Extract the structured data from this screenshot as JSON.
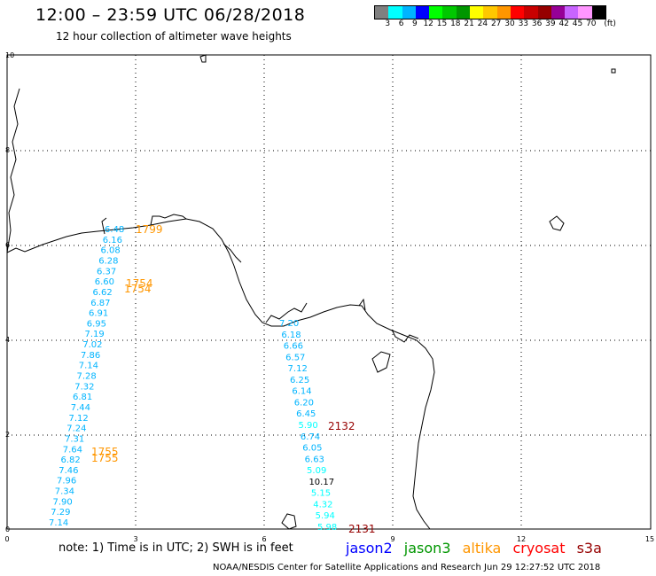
{
  "title": "12:00 – 23:59 UTC 06/28/2018",
  "subtitle": "12 hour collection of altimeter wave heights",
  "colorbar": {
    "colors": [
      "#808080",
      "#00ffff",
      "#00b4ff",
      "#0000ff",
      "#00ff00",
      "#00c800",
      "#009600",
      "#ffff00",
      "#ffc800",
      "#ff9600",
      "#ff0000",
      "#c80000",
      "#960000",
      "#960096",
      "#c864ff",
      "#ff96ff",
      "#000000"
    ],
    "labels": [
      "3",
      "6",
      "9",
      "12",
      "15",
      "18",
      "21",
      "24",
      "27",
      "30",
      "33",
      "36",
      "39",
      "42",
      "45",
      "70"
    ],
    "unit": "(ft)"
  },
  "axes": {
    "x_ticks": [
      "0",
      "3",
      "6",
      "9",
      "12",
      "15"
    ],
    "y_ticks": [
      "0",
      "2",
      "4",
      "6",
      "8",
      "10"
    ]
  },
  "tracks": {
    "jason2_left": {
      "color": "#00b4ff",
      "values": [
        "6.48",
        "6.16",
        "6.08",
        "6.28",
        "6.37",
        "6.60",
        "6.62",
        "6.87",
        "6.91",
        "6.95",
        "7.19",
        "7.02",
        "7.86",
        "7.14",
        "7.28",
        "7.32",
        "6.81",
        "7.44",
        "7.12",
        "7.24",
        "7.31",
        "7.64",
        "6.82",
        "7.46",
        "7.96",
        "7.34",
        "7.90",
        "7.29",
        "7.14"
      ]
    },
    "jason2_right": {
      "color": "#00b4ff",
      "values": [
        "7.20",
        "6.18",
        "6.66",
        "6.57",
        "7.12",
        "6.25",
        "6.14",
        "6.20",
        "6.45",
        "5.90",
        "6.74",
        "6.05",
        "6.63",
        "5.09",
        "10.17",
        "5.15",
        "4.32",
        "5.94",
        "5.98"
      ]
    }
  },
  "pass_labels": [
    {
      "text": "1799",
      "color": "#ff9600"
    },
    {
      "text": "1754",
      "color": "#ff9600"
    },
    {
      "text": "1755",
      "color": "#ff9600"
    },
    {
      "text": "2132",
      "color": "#960000"
    },
    {
      "text": "2131",
      "color": "#960000"
    }
  ],
  "footer": {
    "note": "note: 1) Time is in UTC; 2) SWH is in feet",
    "legend": [
      {
        "name": "jason2",
        "color": "#0000ff"
      },
      {
        "name": "jason3",
        "color": "#009600"
      },
      {
        "name": "altika",
        "color": "#ff9600"
      },
      {
        "name": "cryosat",
        "color": "#ff0000"
      },
      {
        "name": "s3a",
        "color": "#960000"
      }
    ],
    "credit": "NOAA/NESDIS Center for Satellite Applications and Research    Jun 29 12:27:52 UTC 2018"
  }
}
